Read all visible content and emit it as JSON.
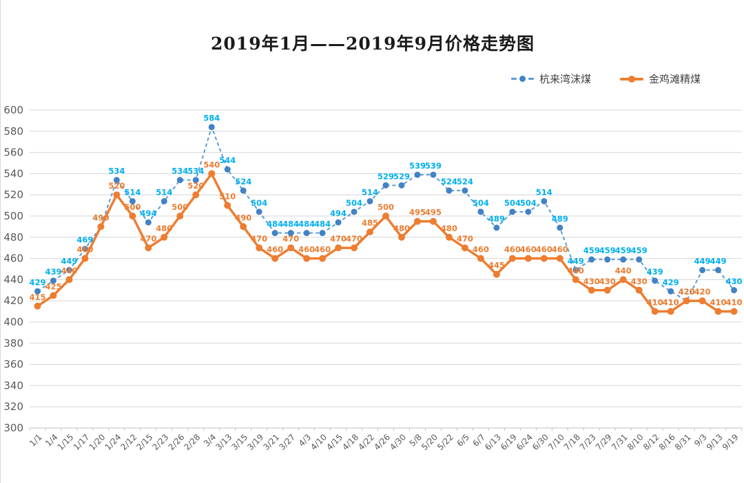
{
  "chart_data": {
    "type": "line",
    "title": "2019年1月——2019年9月价格走势图",
    "categories": [
      "1/1",
      "1/4",
      "1/15",
      "1/17",
      "1/20",
      "1/24",
      "2/12",
      "2/15",
      "2/23",
      "2/26",
      "2/28",
      "3/4",
      "3/13",
      "3/15",
      "3/19",
      "3/21",
      "3/27",
      "4/3",
      "4/10",
      "4/15",
      "4/18",
      "4/22",
      "4/26",
      "4/30",
      "5/8",
      "5/20",
      "5/22",
      "6/5",
      "6/7",
      "6/13",
      "6/19",
      "6/24",
      "6/30",
      "7/10",
      "7/18",
      "7/23",
      "7/29",
      "7/31",
      "8/10",
      "8/12",
      "8/16",
      "8/31",
      "9/3",
      "9/13",
      "9/19"
    ],
    "series": [
      {
        "name": "杭来湾沫煤",
        "style": "dashed",
        "line_color": "#5B9BD5",
        "marker_color": "#4382C4",
        "label_color": "#00B0F0",
        "values": [
          429,
          439,
          449,
          469,
          490,
          534,
          514,
          494,
          514,
          534,
          534,
          584,
          544,
          524,
          504,
          484,
          484,
          484,
          484,
          494,
          504,
          514,
          529,
          529,
          539,
          539,
          524,
          524,
          504,
          489,
          504,
          504,
          514,
          489,
          449,
          459,
          459,
          459,
          459,
          439,
          429,
          420,
          449,
          449,
          430
        ]
      },
      {
        "name": "金鸡滩精煤",
        "style": "solid",
        "line_color": "#ED7D31",
        "marker_color": "#ED7D31",
        "label_color": "#ED7D31",
        "values": [
          415,
          425,
          440,
          460,
          490,
          520,
          500,
          470,
          480,
          500,
          520,
          540,
          510,
          490,
          470,
          460,
          470,
          460,
          460,
          470,
          470,
          485,
          500,
          480,
          495,
          495,
          480,
          470,
          460,
          445,
          460,
          460,
          460,
          460,
          440,
          430,
          430,
          440,
          430,
          410,
          410,
          420,
          420,
          410,
          410
        ]
      }
    ],
    "xlabel": "",
    "ylabel": "",
    "ylim": [
      300,
      600
    ],
    "ytick_step": 20,
    "grid": true,
    "legend_position": "top-right",
    "gridline_color": "#D6D6D6",
    "axis_color": "#BFBFBF",
    "tick_label_color": "#595959"
  }
}
